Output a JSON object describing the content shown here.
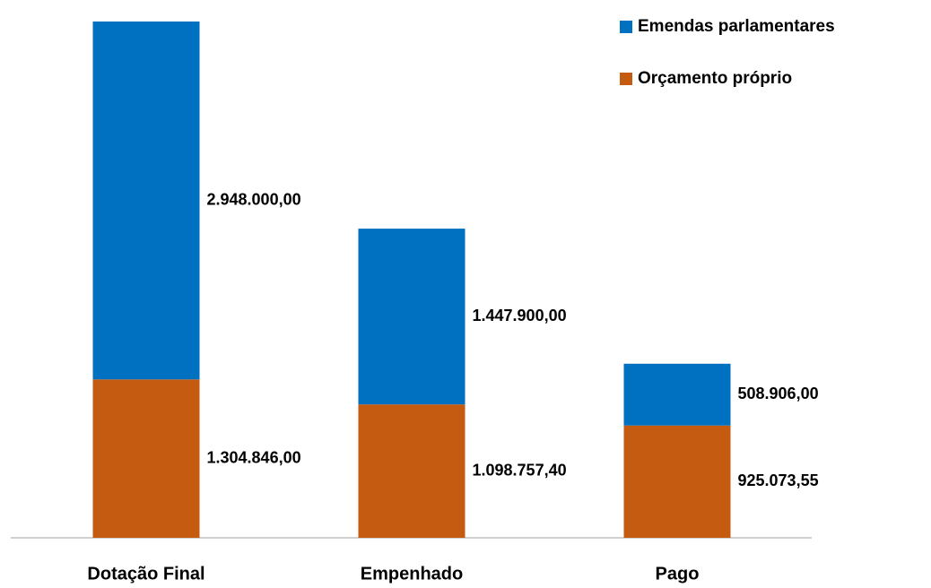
{
  "chart_data": {
    "type": "stacked_bar",
    "categories": [
      "Dotação Final",
      "Empenhado",
      "Pago"
    ],
    "series": [
      {
        "name": "Orçamento próprio",
        "color": "#c55a11",
        "values": [
          1304846.0,
          1098757.4,
          925073.55
        ],
        "value_labels": [
          "1.304.846,00",
          "1.098.757,40",
          "925.073,55"
        ]
      },
      {
        "name": "Emendas parlamentares",
        "color": "#0070c0",
        "values": [
          2948000.0,
          1447900.0,
          508906.0
        ],
        "value_labels": [
          "2.948.000,00",
          "1.447.900,00",
          "508.906,00"
        ]
      }
    ],
    "legend": "top-right"
  }
}
